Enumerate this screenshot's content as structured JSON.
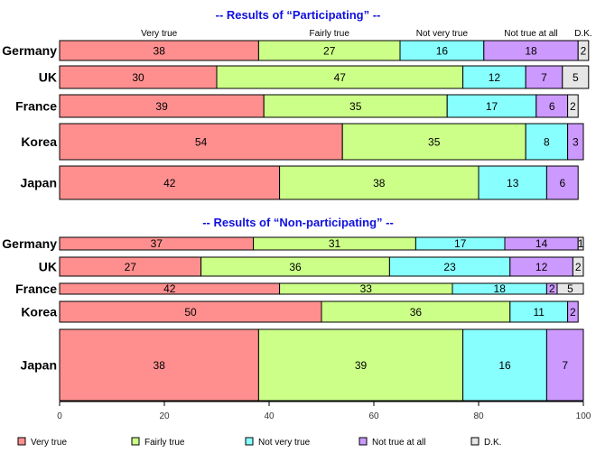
{
  "chart_data": {
    "type": "bar",
    "orientation": "horizontal",
    "stacked": true,
    "xlim": [
      0,
      100
    ],
    "x_ticks": [
      "0",
      "20",
      "40",
      "60",
      "80",
      "100"
    ],
    "series": [
      {
        "name": "Very true",
        "color": "#ff8f8f"
      },
      {
        "name": "Fairly true",
        "color": "#ccff88"
      },
      {
        "name": "Not very true",
        "color": "#88ffff"
      },
      {
        "name": "Not true at all",
        "color": "#cc99ff"
      },
      {
        "name": "D.K.",
        "color": "#e6e6e6"
      }
    ],
    "column_headers": [
      "Very true",
      "Fairly true",
      "Not very true",
      "Not true at all",
      "D.K."
    ],
    "legend_position": "bottom",
    "panels": [
      {
        "title": "-- Results of “Participating” --",
        "rows": [
          {
            "country": "Germany",
            "values": [
              38,
              27,
              16,
              18,
              2
            ]
          },
          {
            "country": "UK",
            "values": [
              30,
              47,
              12,
              7,
              5
            ]
          },
          {
            "country": "France",
            "values": [
              39,
              35,
              17,
              6,
              2
            ]
          },
          {
            "country": "Korea",
            "values": [
              54,
              35,
              8,
              3,
              0
            ]
          },
          {
            "country": "Japan",
            "values": [
              42,
              38,
              13,
              6,
              0
            ]
          }
        ]
      },
      {
        "title": "-- Results of “Non-participating” --",
        "rows": [
          {
            "country": "Germany",
            "values": [
              37,
              31,
              17,
              14,
              1
            ]
          },
          {
            "country": "UK",
            "values": [
              27,
              36,
              23,
              12,
              2
            ]
          },
          {
            "country": "France",
            "values": [
              42,
              33,
              18,
              2,
              5
            ]
          },
          {
            "country": "Korea",
            "values": [
              50,
              36,
              11,
              2,
              0
            ]
          },
          {
            "country": "Japan",
            "values": [
              38,
              39,
              16,
              7,
              0
            ]
          }
        ]
      }
    ]
  }
}
